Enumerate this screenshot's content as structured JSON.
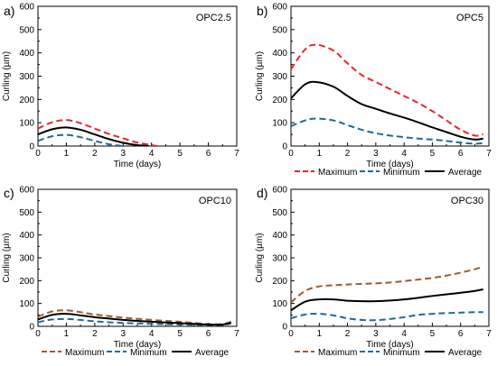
{
  "chart_data": [
    {
      "type": "line",
      "panel_label": "a)",
      "title": "OPC2.5",
      "xlabel": "Time (days)",
      "ylabel": "Curling (µm)",
      "xlim": [
        0,
        7
      ],
      "ylim": [
        0,
        600
      ],
      "xticks": [
        "0",
        "1",
        "2",
        "3",
        "4",
        "5",
        "6",
        "7"
      ],
      "yticks": [
        "0",
        "100",
        "200",
        "300",
        "400",
        "500",
        "600"
      ],
      "legend": null,
      "series": [
        {
          "name": "Maximum",
          "color": "#e8262a",
          "dash": "dash",
          "x": [
            0,
            0.5,
            1,
            1.5,
            2,
            2.5,
            3,
            3.5,
            4,
            4.2
          ],
          "y": [
            75,
            102,
            112,
            98,
            75,
            52,
            33,
            15,
            4,
            0
          ]
        },
        {
          "name": "Minimum",
          "color": "#1a6ba0",
          "dash": "dash",
          "x": [
            0,
            0.5,
            1,
            1.5,
            2,
            2.5,
            3
          ],
          "y": [
            22,
            42,
            48,
            38,
            22,
            8,
            0
          ]
        },
        {
          "name": "Average",
          "color": "#000000",
          "dash": "solid",
          "x": [
            0,
            0.5,
            1,
            1.5,
            2,
            2.5,
            3,
            3.5,
            3.9
          ],
          "y": [
            50,
            72,
            80,
            70,
            50,
            30,
            14,
            4,
            0
          ]
        }
      ]
    },
    {
      "type": "line",
      "panel_label": "b)",
      "title": "OPC5",
      "xlabel": "Time (days)",
      "ylabel": "Curling (µm)",
      "xlim": [
        0,
        7
      ],
      "ylim": [
        0,
        600
      ],
      "xticks": [
        "0",
        "1",
        "2",
        "3",
        "4",
        "5",
        "6",
        "7"
      ],
      "yticks": [
        "0",
        "100",
        "200",
        "300",
        "400",
        "500",
        "600"
      ],
      "legend": {
        "position": "below",
        "entries": [
          "Maximum",
          "Minimum",
          "Average"
        ]
      },
      "series": [
        {
          "name": "Maximum",
          "color": "#e8262a",
          "dash": "dash",
          "x": [
            0,
            0.5,
            0.9,
            1.5,
            2,
            2.5,
            3,
            3.5,
            4,
            4.5,
            5,
            5.5,
            6,
            6.5,
            6.8
          ],
          "y": [
            330,
            415,
            435,
            410,
            355,
            305,
            275,
            245,
            215,
            185,
            150,
            110,
            70,
            45,
            50
          ]
        },
        {
          "name": "Minimum",
          "color": "#1a6ba0",
          "dash": "dash",
          "x": [
            0,
            0.5,
            0.9,
            1.5,
            2,
            2.5,
            3,
            3.5,
            4,
            4.5,
            5,
            5.5,
            6,
            6.5,
            6.8
          ],
          "y": [
            85,
            110,
            118,
            110,
            90,
            70,
            55,
            45,
            38,
            32,
            28,
            22,
            15,
            10,
            12
          ]
        },
        {
          "name": "Average",
          "color": "#000000",
          "dash": "solid",
          "x": [
            0,
            0.5,
            0.9,
            1.5,
            2,
            2.5,
            3,
            3.5,
            4,
            4.5,
            5,
            5.5,
            6,
            6.5,
            6.8
          ],
          "y": [
            205,
            265,
            275,
            255,
            215,
            180,
            160,
            140,
            122,
            102,
            80,
            60,
            40,
            28,
            32
          ]
        }
      ]
    },
    {
      "type": "line",
      "panel_label": "c)",
      "title": "OPC10",
      "xlabel": "Time (days)",
      "ylabel": "Curling (µm)",
      "xlim": [
        0,
        7
      ],
      "ylim": [
        0,
        600
      ],
      "xticks": [
        "0",
        "1",
        "2",
        "3",
        "4",
        "5",
        "6",
        "7"
      ],
      "yticks": [
        "0",
        "100",
        "200",
        "300",
        "400",
        "500",
        "600"
      ],
      "legend": {
        "position": "below",
        "entries": [
          "Maximum",
          "Minimum",
          "Average"
        ]
      },
      "series": [
        {
          "name": "Maximum",
          "color": "#a05a2c",
          "dash": "dash",
          "x": [
            0,
            0.5,
            1,
            1.5,
            2,
            2.5,
            3,
            3.5,
            4,
            4.5,
            5,
            5.5,
            6,
            6.5,
            6.8
          ],
          "y": [
            42,
            65,
            70,
            62,
            52,
            45,
            38,
            33,
            28,
            24,
            20,
            15,
            10,
            10,
            20
          ]
        },
        {
          "name": "Minimum",
          "color": "#1a6ba0",
          "dash": "dash",
          "x": [
            0,
            0.5,
            1,
            1.5,
            2,
            2.5,
            3,
            3.5,
            4,
            4.5,
            5,
            5.5,
            6,
            6.5,
            6.8
          ],
          "y": [
            18,
            30,
            32,
            28,
            22,
            18,
            15,
            13,
            11,
            9,
            8,
            7,
            6,
            7,
            12
          ]
        },
        {
          "name": "Average",
          "color": "#000000",
          "dash": "solid",
          "x": [
            0,
            0.5,
            1,
            1.5,
            2,
            2.5,
            3,
            3.5,
            4,
            4.5,
            5,
            5.5,
            6,
            6.5,
            6.8
          ],
          "y": [
            30,
            50,
            55,
            48,
            40,
            34,
            28,
            24,
            20,
            17,
            14,
            11,
            8,
            8,
            16
          ]
        }
      ]
    },
    {
      "type": "line",
      "panel_label": "d)",
      "title": "OPC30",
      "xlabel": "Time (days)",
      "ylabel": "Curling (µm)",
      "xlim": [
        0,
        7
      ],
      "ylim": [
        0,
        600
      ],
      "xticks": [
        "0",
        "1",
        "2",
        "3",
        "4",
        "5",
        "6",
        "7"
      ],
      "yticks": [
        "0",
        "100",
        "200",
        "300",
        "400",
        "500",
        "600"
      ],
      "legend": {
        "position": "below",
        "entries": [
          "Maximum",
          "Minimum",
          "Average"
        ]
      },
      "series": [
        {
          "name": "Maximum",
          "color": "#a05a2c",
          "dash": "dash",
          "x": [
            0,
            0.5,
            1,
            1.5,
            2,
            2.5,
            3,
            3.5,
            4,
            4.5,
            5,
            5.5,
            6,
            6.5,
            6.8
          ],
          "y": [
            105,
            155,
            175,
            180,
            183,
            186,
            188,
            192,
            198,
            205,
            212,
            222,
            235,
            250,
            262
          ]
        },
        {
          "name": "Minimum",
          "color": "#1a6ba0",
          "dash": "dash",
          "x": [
            0,
            0.5,
            1,
            1.5,
            2,
            2.5,
            3,
            3.5,
            4,
            4.5,
            5,
            5.5,
            6,
            6.5,
            6.8
          ],
          "y": [
            35,
            52,
            55,
            48,
            35,
            28,
            27,
            32,
            40,
            50,
            55,
            58,
            60,
            62,
            62
          ]
        },
        {
          "name": "Average",
          "color": "#000000",
          "dash": "solid",
          "x": [
            0,
            0.5,
            1,
            1.5,
            2,
            2.5,
            3,
            3.5,
            4,
            4.5,
            5,
            5.5,
            6,
            6.5,
            6.8
          ],
          "y": [
            70,
            108,
            118,
            118,
            112,
            110,
            110,
            113,
            118,
            125,
            133,
            140,
            147,
            155,
            162
          ]
        }
      ]
    }
  ]
}
